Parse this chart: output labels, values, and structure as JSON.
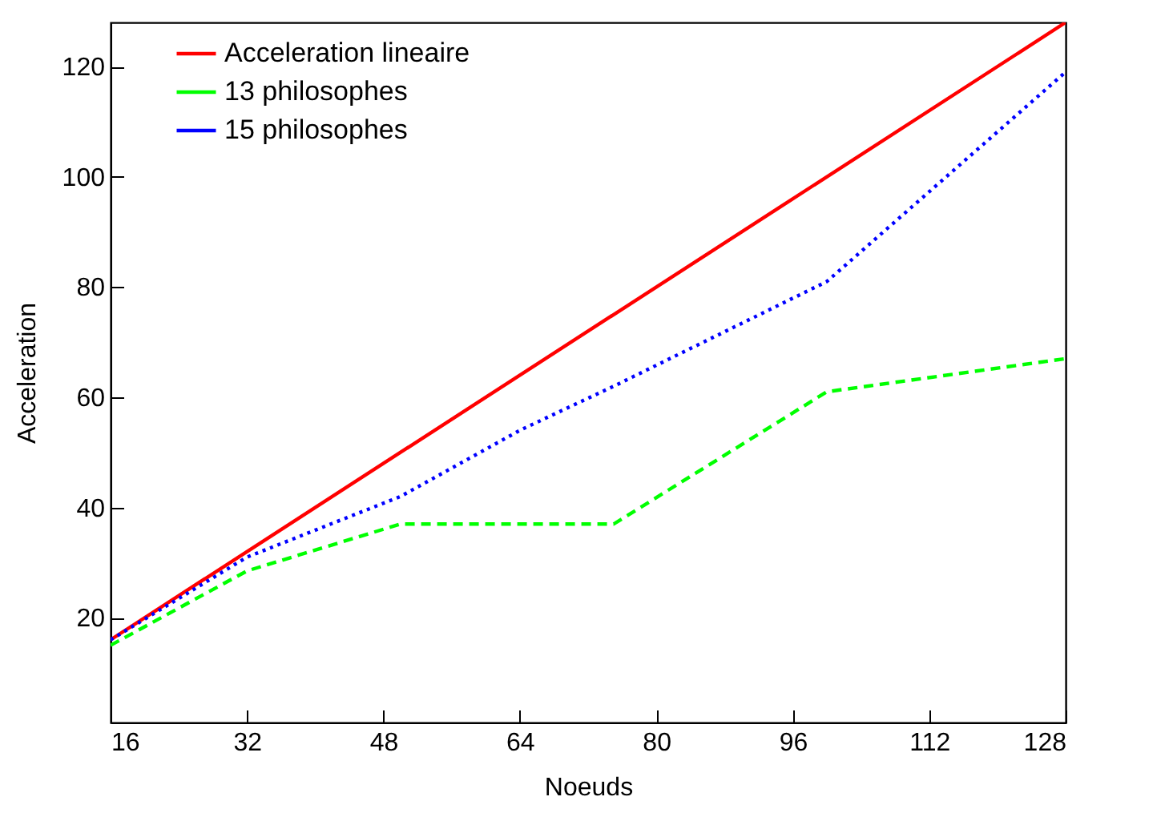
{
  "chart_data": {
    "type": "line",
    "xlabel": "Noeuds",
    "ylabel": "Acceleration",
    "xlim": [
      16,
      128
    ],
    "xticks": [
      16,
      32,
      48,
      64,
      80,
      96,
      112,
      128
    ],
    "ylim": [
      1,
      128
    ],
    "yticks": [
      20,
      40,
      60,
      80,
      100,
      120
    ],
    "grid": false,
    "legend": "top left",
    "marker": "none",
    "series": [
      {
        "name": "Acceleration lineaire",
        "color": "#ff0000",
        "line_style": "solid",
        "x": [
          16,
          128
        ],
        "values": [
          16,
          128
        ]
      },
      {
        "name": "13 philosophes",
        "color": "#00ff00",
        "line_style": "dashed",
        "x": [
          16,
          32,
          50,
          75,
          100,
          128
        ],
        "values": [
          15,
          28.5,
          37,
          37,
          61,
          67
        ]
      },
      {
        "name": "15 philosophes",
        "color": "#0000ff",
        "line_style": "dotted",
        "x": [
          16,
          32,
          50,
          64,
          75,
          100,
          128
        ],
        "values": [
          16,
          31,
          42,
          54,
          62,
          81,
          119
        ]
      }
    ]
  }
}
